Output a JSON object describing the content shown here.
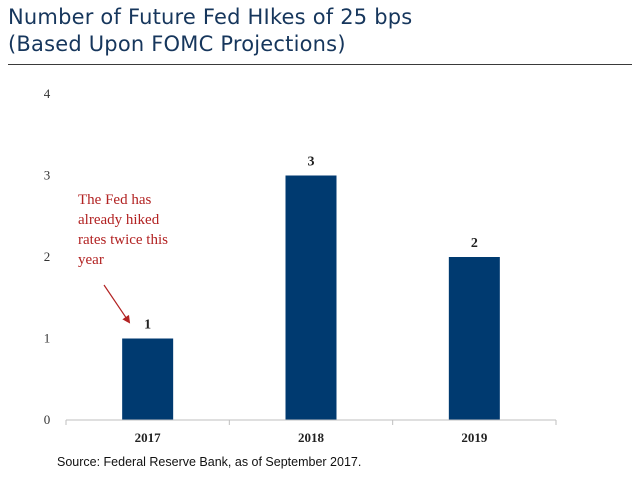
{
  "header": {
    "title_line1": "Number of Future Fed HIkes of 25 bps",
    "title_line2": "(Based Upon FOMC Projections)"
  },
  "annotation": {
    "lines": [
      "The Fed has",
      "already hiked",
      "rates twice this",
      "year"
    ],
    "color": "#b22222"
  },
  "source": "Source: Federal Reserve Bank, as of September 2017.",
  "colors": {
    "bar": "#003a70",
    "title": "#16365c",
    "annotation": "#b22222"
  },
  "chart_data": {
    "type": "bar",
    "categories": [
      "2017",
      "2018",
      "2019"
    ],
    "values": [
      1,
      3,
      2
    ],
    "data_labels": [
      "1",
      "3",
      "2"
    ],
    "title": "Number of Future Fed HIkes of 25 bps",
    "subtitle": "(Based Upon FOMC Projections)",
    "ylim": [
      0,
      4
    ],
    "yticks": [
      0,
      1,
      2,
      3,
      4
    ],
    "ytick_labels": [
      "0",
      "1",
      "2",
      "3",
      "4"
    ],
    "grid": false,
    "legend": "none"
  }
}
